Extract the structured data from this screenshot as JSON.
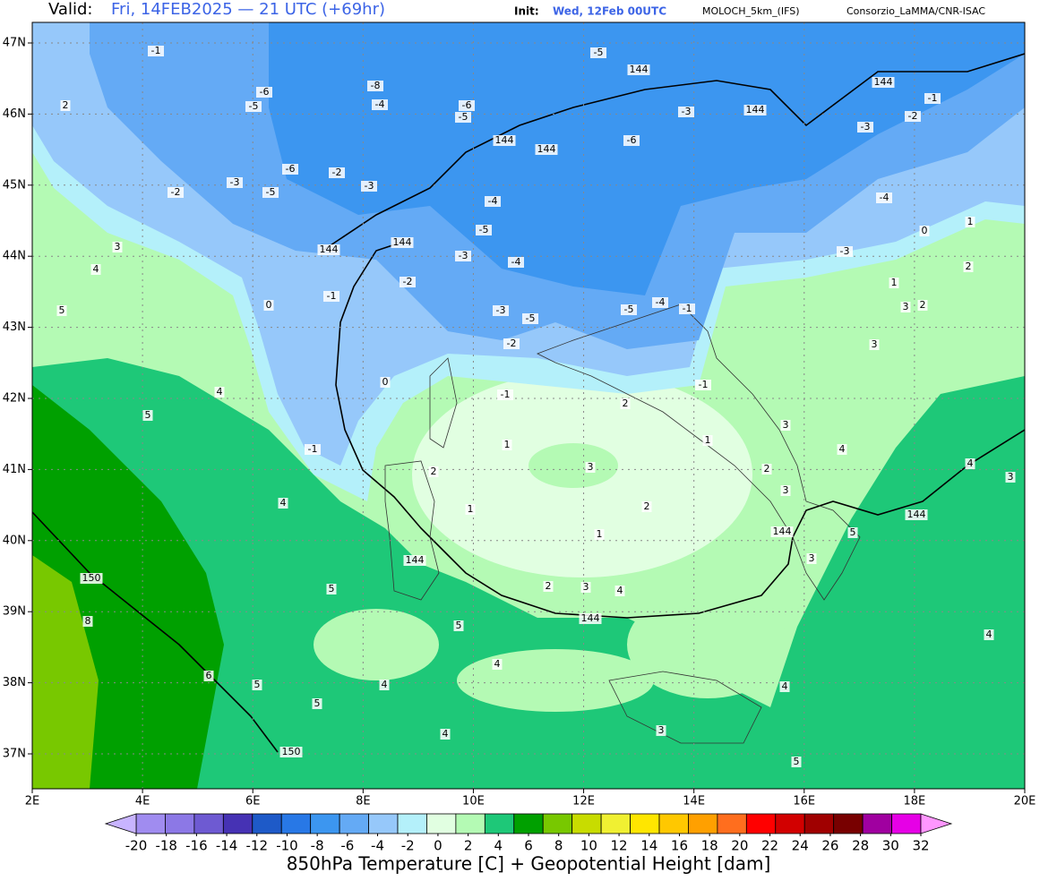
{
  "header": {
    "valid_label": "Valid:",
    "valid_time": "Fri, 14FEB2025 — 21 UTC (+69hr)",
    "init_label": "Init:",
    "init_time": "Wed, 12Feb 00UTC",
    "model": "MOLOCH_5km_(IFS)",
    "credit": "Consorzio_LaMMA/CNR-ISAC"
  },
  "map": {
    "lon_labels": [
      "2E",
      "4E",
      "6E",
      "8E",
      "10E",
      "12E",
      "14E",
      "16E",
      "18E",
      "20E"
    ],
    "lat_labels": [
      "47N",
      "46N",
      "45N",
      "44N",
      "43N",
      "42N",
      "41N",
      "40N",
      "39N",
      "38N",
      "37N"
    ],
    "contour_labels": [
      -1,
      2,
      -6,
      -5,
      -8,
      -4,
      -6,
      -5,
      144,
      144,
      -6,
      -5,
      144,
      144,
      -3,
      -2,
      -1,
      144,
      -6,
      -2,
      -3,
      -5,
      -2,
      -3,
      -4,
      -5,
      -3,
      -4,
      -2,
      -1,
      0,
      144,
      144,
      -3,
      -5,
      -5,
      -4,
      -1,
      -2,
      -1,
      0,
      -1,
      2,
      1,
      3,
      2,
      1,
      2,
      3,
      4,
      144,
      144,
      1,
      4,
      5,
      4,
      5,
      4,
      3,
      150,
      8,
      6,
      5,
      5,
      4,
      4,
      5,
      5,
      150,
      4,
      3,
      5,
      4,
      4,
      144,
      5,
      3,
      144,
      4,
      4,
      3,
      3,
      2,
      3,
      3,
      3,
      2,
      1,
      2,
      0,
      -4,
      -3,
      1,
      -3,
      -1,
      2,
      1
    ]
  },
  "colorbar": {
    "title": "850hPa Temperature [C] + Geopotential Height [dam]",
    "ticks": [
      -20,
      -18,
      -16,
      -14,
      -12,
      -10,
      -8,
      -6,
      -4,
      -2,
      0,
      2,
      4,
      6,
      8,
      10,
      12,
      14,
      16,
      18,
      20,
      22,
      24,
      26,
      28,
      30,
      32
    ],
    "below_color": "#c8b4ff",
    "colors": [
      "#a08cf0",
      "#8c78e6",
      "#6e5ad2",
      "#4632b4",
      "#1e5ac8",
      "#2878e6",
      "#3c96f0",
      "#64aaf5",
      "#96c8fa",
      "#b4f0fa",
      "#e1ffe1",
      "#b4fab4",
      "#1ec878",
      "#00a000",
      "#78c800",
      "#c8dc00",
      "#f0f032",
      "#ffe600",
      "#ffc800",
      "#ffa000",
      "#ff6e1e",
      "#ff0000",
      "#d20000",
      "#a00000",
      "#780000",
      "#a000a0",
      "#e600e6"
    ],
    "above_color": "#ff96ff"
  }
}
